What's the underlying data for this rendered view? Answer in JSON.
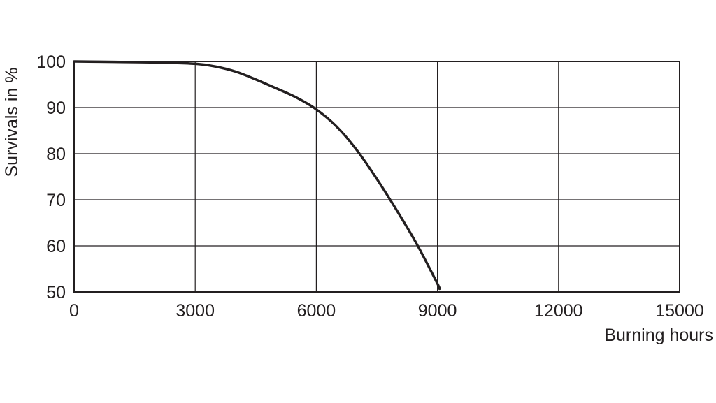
{
  "chart_data": {
    "type": "line",
    "xlabel": "Burning hours",
    "ylabel": "Survivals in %",
    "xlim": [
      0,
      15000
    ],
    "ylim": [
      50,
      100
    ],
    "x_ticks": [
      0,
      3000,
      6000,
      9000,
      12000,
      15000
    ],
    "y_ticks": [
      50,
      60,
      70,
      80,
      90,
      100
    ],
    "x_tick_labels": [
      "0",
      "3000",
      "6000",
      "9000",
      "12000",
      "15000"
    ],
    "y_tick_labels": [
      "50",
      "60",
      "70",
      "80",
      "90",
      "100"
    ],
    "grid": true,
    "series": [
      {
        "x": [
          0,
          1000,
          2000,
          3000,
          3500,
          4000,
          4500,
          5000,
          5500,
          6000,
          6500,
          7000,
          7500,
          8000,
          8500,
          9000,
          9050
        ],
        "y": [
          100,
          99.9,
          99.8,
          99.5,
          98.9,
          97.8,
          96.1,
          94.2,
          92.2,
          89.6,
          85.9,
          80.8,
          74.5,
          67.6,
          60.2,
          51.8,
          50.7
        ]
      }
    ]
  }
}
